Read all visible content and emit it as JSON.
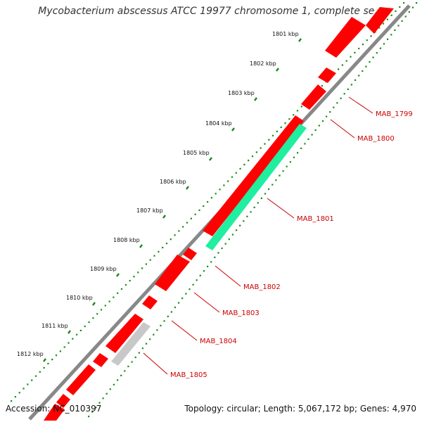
{
  "title": "Mycobacterium abscessus ATCC 19977 chromosome 1, complete se...",
  "footer": {
    "accession": "Accession: NC_010397",
    "summary": "Topology: circular; Length: 5,067,172 bp; Genes: 4,970"
  },
  "ticks": [
    {
      "label": "1801 kbp"
    },
    {
      "label": "1802 kbp"
    },
    {
      "label": "1803 kbp"
    },
    {
      "label": "1804 kbp"
    },
    {
      "label": "1805 kbp"
    },
    {
      "label": "1806 kbp"
    },
    {
      "label": "1807 kbp"
    },
    {
      "label": "1808 kbp"
    },
    {
      "label": "1809 kbp"
    },
    {
      "label": "1810 kbp"
    },
    {
      "label": "1811 kbp"
    },
    {
      "label": "1812 kbp"
    }
  ],
  "genes": [
    {
      "label": "MAB_1799"
    },
    {
      "label": "MAB_1800"
    },
    {
      "label": "MAB_1801"
    },
    {
      "label": "MAB_1802"
    },
    {
      "label": "MAB_1803"
    },
    {
      "label": "MAB_1804"
    },
    {
      "label": "MAB_1805"
    }
  ],
  "colors": {
    "forward_gene": "#ff0000",
    "highlight_gene": "#1fef9f",
    "pseudo_gene": "#c8c8c8",
    "backbone": "#888888",
    "tick_dots": "#1a8a1a",
    "label_line": "#cc0000"
  }
}
